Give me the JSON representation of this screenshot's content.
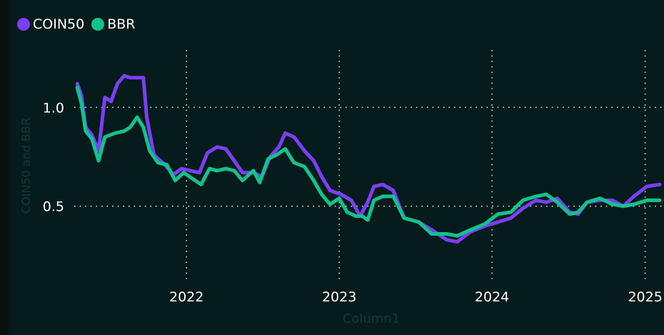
{
  "chart_data": {
    "type": "line",
    "xlabel": "Column1",
    "ylabel": "COIN50 and BBR",
    "x_ticks": [
      "2022",
      "2023",
      "2024",
      "2025"
    ],
    "y_ticks": [
      "0.5",
      "1.0"
    ],
    "xlim": [
      "2021-04-01",
      "2025-02-15"
    ],
    "ylim": [
      0.08,
      1.29
    ],
    "grid": true,
    "legend_placement": "top-left",
    "series": [
      {
        "name": "COIN50",
        "color": "#7b3ff2",
        "points": [
          [
            "2021-04-15",
            1.12
          ],
          [
            "2021-04-25",
            1.06
          ],
          [
            "2021-05-05",
            0.9
          ],
          [
            "2021-05-20",
            0.86
          ],
          [
            "2021-06-05",
            0.78
          ],
          [
            "2021-06-20",
            1.05
          ],
          [
            "2021-07-05",
            1.03
          ],
          [
            "2021-07-20",
            1.12
          ],
          [
            "2021-08-05",
            1.16
          ],
          [
            "2021-08-20",
            1.15
          ],
          [
            "2021-09-05",
            1.15
          ],
          [
            "2021-09-20",
            1.15
          ],
          [
            "2021-09-28",
            0.95
          ],
          [
            "2021-10-15",
            0.76
          ],
          [
            "2021-11-10",
            0.71
          ],
          [
            "2021-12-01",
            0.66
          ],
          [
            "2021-12-20",
            0.69
          ],
          [
            "2022-01-10",
            0.68
          ],
          [
            "2022-02-01",
            0.67
          ],
          [
            "2022-02-20",
            0.77
          ],
          [
            "2022-03-15",
            0.8
          ],
          [
            "2022-04-05",
            0.79
          ],
          [
            "2022-04-25",
            0.73
          ],
          [
            "2022-05-15",
            0.67
          ],
          [
            "2022-06-10",
            0.67
          ],
          [
            "2022-06-30",
            0.65
          ],
          [
            "2022-07-20",
            0.75
          ],
          [
            "2022-08-10",
            0.8
          ],
          [
            "2022-08-25",
            0.87
          ],
          [
            "2022-09-15",
            0.85
          ],
          [
            "2022-10-10",
            0.78
          ],
          [
            "2022-11-01",
            0.73
          ],
          [
            "2022-11-20",
            0.65
          ],
          [
            "2022-12-10",
            0.58
          ],
          [
            "2023-01-05",
            0.56
          ],
          [
            "2023-01-30",
            0.53
          ],
          [
            "2023-02-20",
            0.45
          ],
          [
            "2023-03-10",
            0.52
          ],
          [
            "2023-03-25",
            0.6
          ],
          [
            "2023-04-15",
            0.61
          ],
          [
            "2023-05-10",
            0.58
          ],
          [
            "2023-06-05",
            0.44
          ],
          [
            "2023-07-10",
            0.42
          ],
          [
            "2023-08-10",
            0.38
          ],
          [
            "2023-09-15",
            0.33
          ],
          [
            "2023-10-10",
            0.32
          ],
          [
            "2023-11-10",
            0.37
          ],
          [
            "2023-12-15",
            0.4
          ],
          [
            "2024-01-15",
            0.42
          ],
          [
            "2024-02-15",
            0.44
          ],
          [
            "2024-03-15",
            0.49
          ],
          [
            "2024-04-15",
            0.53
          ],
          [
            "2024-05-10",
            0.52
          ],
          [
            "2024-06-05",
            0.54
          ],
          [
            "2024-07-05",
            0.47
          ],
          [
            "2024-07-25",
            0.46
          ],
          [
            "2024-08-15",
            0.52
          ],
          [
            "2024-09-15",
            0.53
          ],
          [
            "2024-10-15",
            0.53
          ],
          [
            "2024-11-10",
            0.5
          ],
          [
            "2024-12-05",
            0.55
          ],
          [
            "2025-01-05",
            0.6
          ],
          [
            "2025-02-05",
            0.61
          ]
        ]
      },
      {
        "name": "BBR",
        "color": "#12c28d",
        "points": [
          [
            "2021-04-15",
            1.1
          ],
          [
            "2021-04-25",
            1.02
          ],
          [
            "2021-05-05",
            0.88
          ],
          [
            "2021-05-20",
            0.84
          ],
          [
            "2021-06-05",
            0.73
          ],
          [
            "2021-06-20",
            0.85
          ],
          [
            "2021-07-15",
            0.87
          ],
          [
            "2021-08-05",
            0.88
          ],
          [
            "2021-08-20",
            0.9
          ],
          [
            "2021-09-05",
            0.95
          ],
          [
            "2021-09-20",
            0.9
          ],
          [
            "2021-10-05",
            0.78
          ],
          [
            "2021-10-25",
            0.72
          ],
          [
            "2021-11-15",
            0.71
          ],
          [
            "2021-12-05",
            0.63
          ],
          [
            "2021-12-25",
            0.67
          ],
          [
            "2022-01-15",
            0.64
          ],
          [
            "2022-02-05",
            0.61
          ],
          [
            "2022-02-25",
            0.69
          ],
          [
            "2022-03-15",
            0.68
          ],
          [
            "2022-04-05",
            0.69
          ],
          [
            "2022-04-25",
            0.68
          ],
          [
            "2022-05-15",
            0.63
          ],
          [
            "2022-06-10",
            0.68
          ],
          [
            "2022-06-25",
            0.62
          ],
          [
            "2022-07-15",
            0.74
          ],
          [
            "2022-08-05",
            0.76
          ],
          [
            "2022-08-25",
            0.79
          ],
          [
            "2022-09-15",
            0.72
          ],
          [
            "2022-10-10",
            0.7
          ],
          [
            "2022-11-01",
            0.63
          ],
          [
            "2022-11-20",
            0.56
          ],
          [
            "2022-12-10",
            0.51
          ],
          [
            "2023-01-01",
            0.54
          ],
          [
            "2023-01-20",
            0.47
          ],
          [
            "2023-02-10",
            0.45
          ],
          [
            "2023-02-25",
            0.45
          ],
          [
            "2023-03-10",
            0.43
          ],
          [
            "2023-03-25",
            0.53
          ],
          [
            "2023-04-15",
            0.55
          ],
          [
            "2023-05-10",
            0.55
          ],
          [
            "2023-06-05",
            0.44
          ],
          [
            "2023-07-10",
            0.42
          ],
          [
            "2023-08-10",
            0.36
          ],
          [
            "2023-09-15",
            0.36
          ],
          [
            "2023-10-10",
            0.35
          ],
          [
            "2023-11-10",
            0.38
          ],
          [
            "2023-12-15",
            0.41
          ],
          [
            "2024-01-15",
            0.46
          ],
          [
            "2024-02-15",
            0.47
          ],
          [
            "2024-03-15",
            0.53
          ],
          [
            "2024-04-15",
            0.55
          ],
          [
            "2024-05-10",
            0.56
          ],
          [
            "2024-06-05",
            0.52
          ],
          [
            "2024-07-05",
            0.46
          ],
          [
            "2024-07-25",
            0.47
          ],
          [
            "2024-08-15",
            0.52
          ],
          [
            "2024-09-15",
            0.54
          ],
          [
            "2024-10-15",
            0.51
          ],
          [
            "2024-11-10",
            0.5
          ],
          [
            "2024-12-05",
            0.51
          ],
          [
            "2025-01-05",
            0.53
          ],
          [
            "2025-02-05",
            0.53
          ]
        ]
      }
    ]
  }
}
